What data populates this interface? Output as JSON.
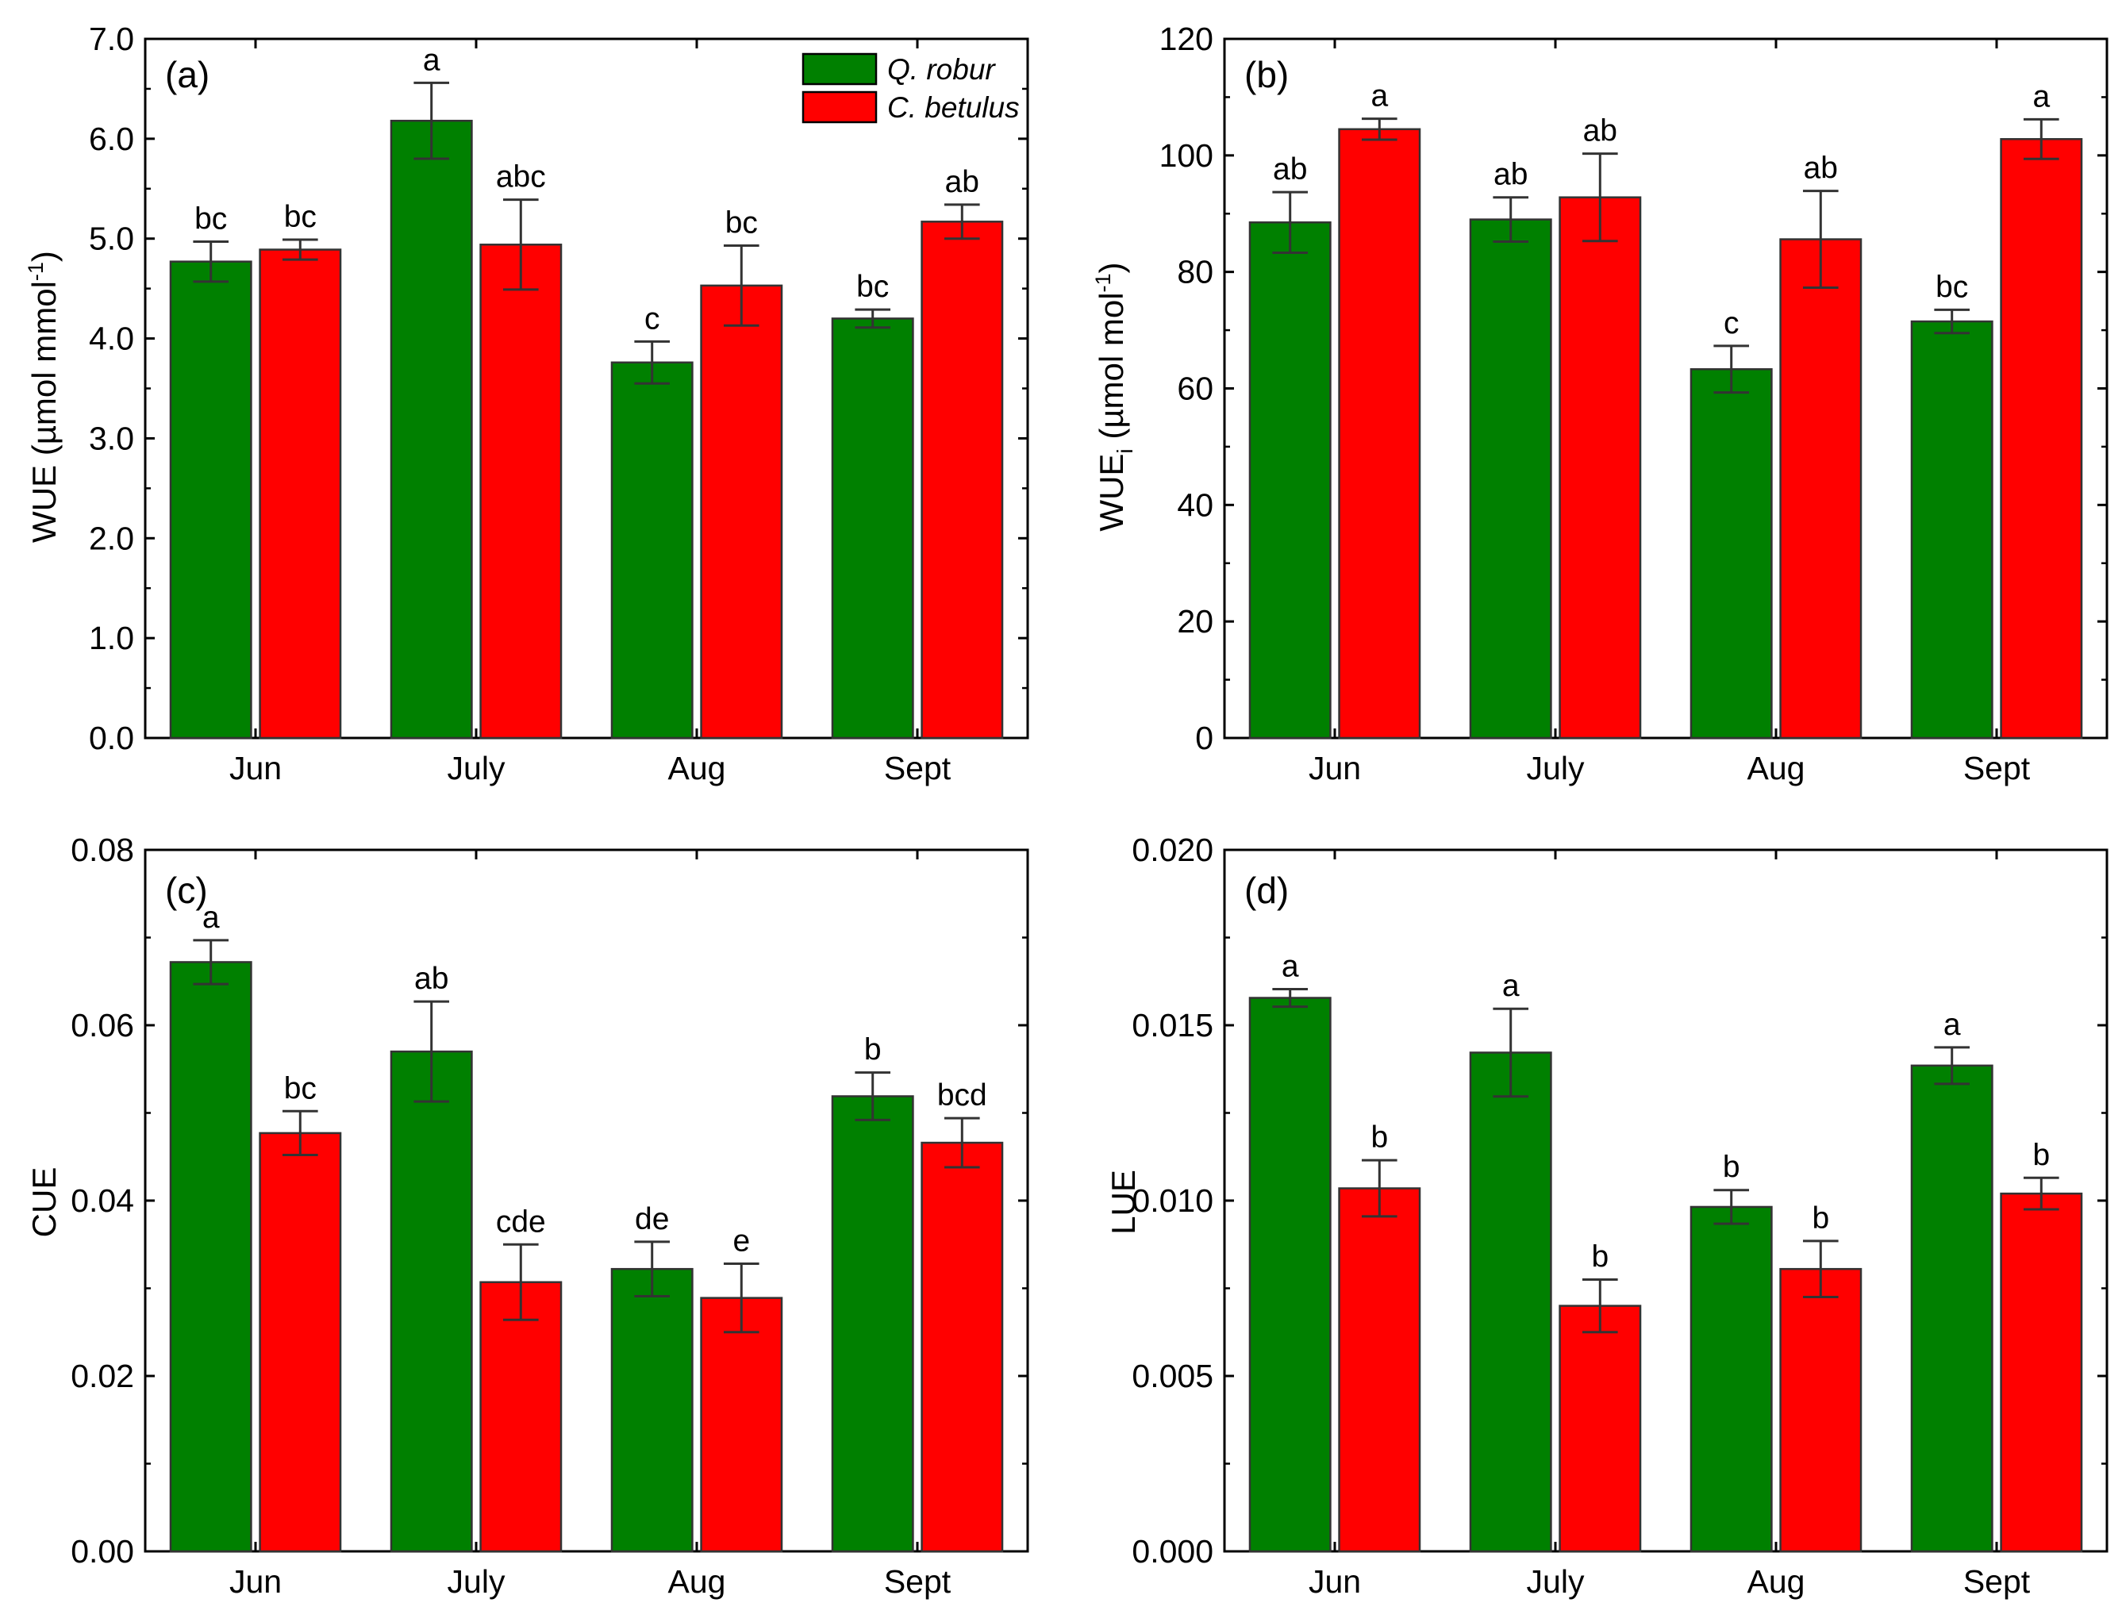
{
  "series_names": [
    "Q. robur",
    "C. betulus"
  ],
  "colors": {
    "q_robur": "#008000",
    "c_betulus": "#ff0000",
    "axis": "#000000",
    "error_bar": "#333333"
  },
  "chart_data": [
    {
      "type": "bar",
      "panel": "(a)",
      "categories": [
        "Jun",
        "July",
        "Aug",
        "Sept"
      ],
      "ylabel_main": "WUE (µmol mmol",
      "ylabel_sup": "-1",
      "ylabel_tail": ")",
      "ylim": [
        0,
        7
      ],
      "yticks": [
        0,
        1,
        2,
        3,
        4,
        5,
        6,
        7
      ],
      "ytick_labels": [
        "0.0",
        "1.0",
        "2.0",
        "3.0",
        "4.0",
        "5.0",
        "6.0",
        "7.0"
      ],
      "legend": {
        "placement": "top-right",
        "entries": [
          "Q. robur",
          "C. betulus"
        ]
      },
      "series": [
        {
          "name": "Q. robur",
          "values": [
            4.77,
            6.18,
            3.76,
            4.2
          ],
          "errors": [
            0.2,
            0.38,
            0.21,
            0.09
          ],
          "letters": [
            "bc",
            "a",
            "c",
            "bc"
          ]
        },
        {
          "name": "C. betulus",
          "values": [
            4.89,
            4.94,
            4.53,
            5.17
          ],
          "errors": [
            0.1,
            0.45,
            0.4,
            0.17
          ],
          "letters": [
            "bc",
            "abc",
            "bc",
            "ab"
          ]
        }
      ]
    },
    {
      "type": "bar",
      "panel": "(b)",
      "categories": [
        "Jun",
        "July",
        "Aug",
        "Sept"
      ],
      "ylabel_main": "WUE",
      "ylabel_sub": "i",
      "ylabel_rest": " (µmol mol",
      "ylabel_sup": "-1",
      "ylabel_tail": ")",
      "ylim": [
        0,
        120
      ],
      "yticks": [
        0,
        20,
        40,
        60,
        80,
        100,
        120
      ],
      "ytick_labels": [
        "0",
        "20",
        "40",
        "60",
        "80",
        "100",
        "120"
      ],
      "series": [
        {
          "name": "Q. robur",
          "values": [
            88.5,
            89.0,
            63.3,
            71.5
          ],
          "errors": [
            5.2,
            3.8,
            4.0,
            2.0
          ],
          "letters": [
            "ab",
            "ab",
            "c",
            "bc"
          ]
        },
        {
          "name": "C. betulus",
          "values": [
            104.5,
            92.8,
            85.6,
            102.8
          ],
          "errors": [
            1.8,
            7.5,
            8.3,
            3.4
          ],
          "letters": [
            "a",
            "ab",
            "ab",
            "a"
          ]
        }
      ]
    },
    {
      "type": "bar",
      "panel": "(c)",
      "categories": [
        "Jun",
        "July",
        "Aug",
        "Sept"
      ],
      "ylabel_main": "CUE",
      "ylim": [
        0,
        0.08
      ],
      "yticks": [
        0,
        0.02,
        0.04,
        0.06,
        0.08
      ],
      "ytick_labels": [
        "0.00",
        "0.02",
        "0.04",
        "0.06",
        "0.08"
      ],
      "series": [
        {
          "name": "Q. robur",
          "values": [
            0.0672,
            0.057,
            0.0322,
            0.0519
          ],
          "errors": [
            0.0025,
            0.0057,
            0.0031,
            0.0027
          ],
          "letters": [
            "a",
            "ab",
            "de",
            "b"
          ]
        },
        {
          "name": "C. betulus",
          "values": [
            0.0477,
            0.0307,
            0.0289,
            0.0466
          ],
          "errors": [
            0.0025,
            0.0043,
            0.0039,
            0.0028
          ],
          "letters": [
            "bc",
            "cde",
            "e",
            "bcd"
          ]
        }
      ]
    },
    {
      "type": "bar",
      "panel": "(d)",
      "categories": [
        "Jun",
        "July",
        "Aug",
        "Sept"
      ],
      "ylabel_main": "LUE",
      "ylim": [
        0,
        0.02
      ],
      "yticks": [
        0,
        0.005,
        0.01,
        0.015,
        0.02
      ],
      "ytick_labels": [
        "0.000",
        "0.005",
        "0.010",
        "0.015",
        "0.020"
      ],
      "series": [
        {
          "name": "Q. robur",
          "values": [
            0.01578,
            0.01422,
            0.00982,
            0.01385
          ],
          "errors": [
            0.00025,
            0.00125,
            0.00048,
            0.00052
          ],
          "letters": [
            "a",
            "a",
            "b",
            "a"
          ]
        },
        {
          "name": "C. betulus",
          "values": [
            0.01035,
            0.007,
            0.00805,
            0.0102
          ],
          "errors": [
            0.0008,
            0.00075,
            0.0008,
            0.00045
          ],
          "letters": [
            "b",
            "b",
            "b",
            "b"
          ]
        }
      ]
    }
  ]
}
